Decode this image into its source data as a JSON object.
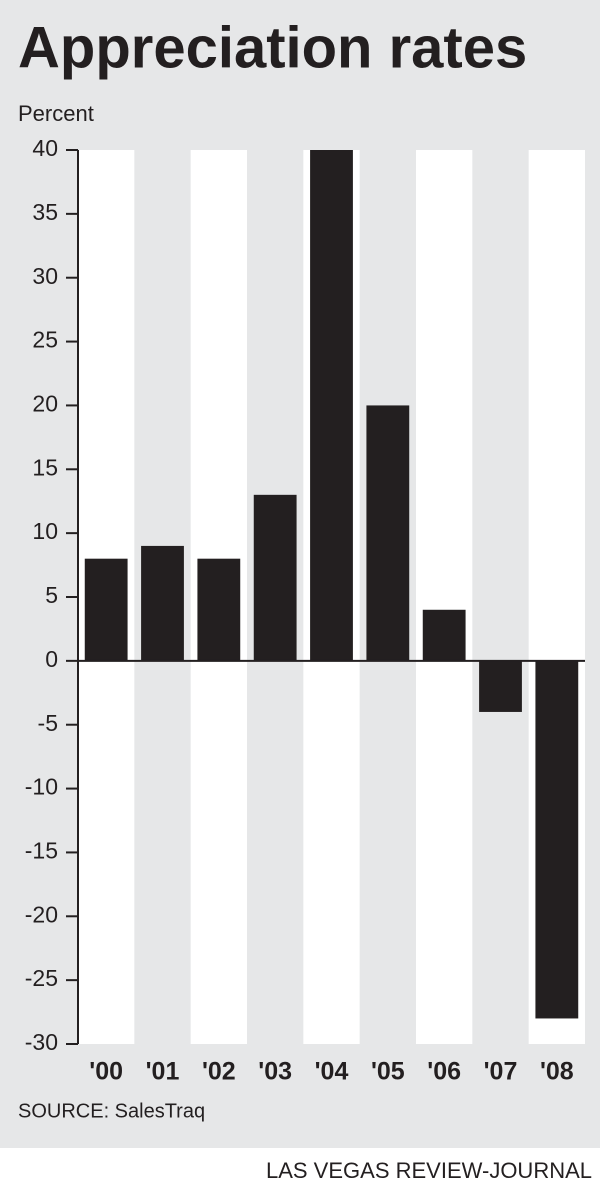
{
  "chart_data": {
    "type": "bar",
    "title": "Appreciation rates",
    "y_label": "Percent",
    "categories": [
      "'00",
      "'01",
      "'02",
      "'03",
      "'04",
      "'05",
      "'06",
      "'07",
      "'08"
    ],
    "values": [
      8,
      9,
      8,
      13,
      40,
      20,
      4,
      -4,
      -28
    ],
    "color": "#231f20",
    "ylim": [
      -30,
      40
    ],
    "yticks": [
      -30,
      -25,
      -20,
      -15,
      -10,
      -5,
      0,
      5,
      10,
      15,
      20,
      25,
      30,
      35,
      40
    ],
    "source": "SOURCE: SalesTraq",
    "credit": "LAS VEGAS REVIEW-JOURNAL"
  }
}
